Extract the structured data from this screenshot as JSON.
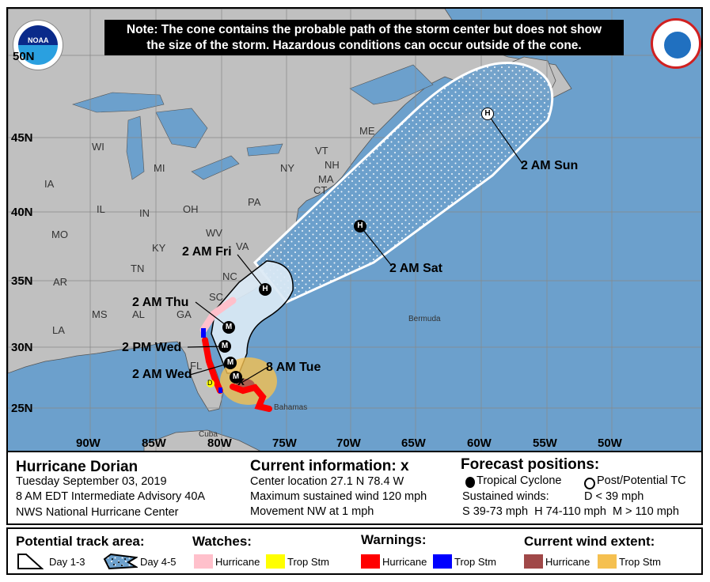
{
  "note": {
    "line1": "Note: The cone contains the probable path of the storm center but does not show",
    "line2": "the size of the storm. Hazardous conditions can occur outside of the cone."
  },
  "logos": {
    "left": "NOAA",
    "right": "NATIONAL WEATHER SERVICE"
  },
  "map": {
    "lat_labels": [
      "50N",
      "45N",
      "40N",
      "35N",
      "30N",
      "25N"
    ],
    "lon_labels": [
      "90W",
      "85W",
      "80W",
      "75W",
      "70W",
      "65W",
      "60W",
      "55W",
      "50W"
    ],
    "places": [
      "IA",
      "WI",
      "MI",
      "IL",
      "IN",
      "OH",
      "PA",
      "NY",
      "VT",
      "NH",
      "ME",
      "MA",
      "CT",
      "MO",
      "KY",
      "WV",
      "VA",
      "TN",
      "NC",
      "AR",
      "MS",
      "AL",
      "GA",
      "SC",
      "LA",
      "FL",
      "Bermuda",
      "Bahamas",
      "Cuba"
    ],
    "track_labels": [
      "2 AM Sun",
      "2 AM Sat",
      "2 AM Fri",
      "2 AM Thu",
      "2 PM Wed",
      "2 AM Wed",
      "8 AM Tue"
    ],
    "markers": [
      "H",
      "H",
      "H",
      "M",
      "M",
      "M",
      "M"
    ],
    "current_marker": "x",
    "watch_marker": "D"
  },
  "info": {
    "storm_name": "Hurricane Dorian",
    "date": "Tuesday September 03, 2019",
    "advisory": "8 AM EDT Intermediate Advisory 40A",
    "center": "NWS National Hurricane Center",
    "current_title": "Current information: x",
    "location": "Center location 27.1 N 78.4 W",
    "max_wind": "Maximum sustained wind 120 mph",
    "movement": "Movement NW at 1 mph",
    "forecast_title": "Forecast positions:",
    "tropical_cyclone": "Tropical Cyclone",
    "post_potential": "Post/Potential TC",
    "sustained_winds": "Sustained winds:",
    "d_wind": "D < 39 mph",
    "s_h_m_winds": "S 39-73 mph  H 74-110 mph  M > 110 mph"
  },
  "legend": {
    "track_title": "Potential track area:",
    "day13": "Day 1-3",
    "day45": "Day 4-5",
    "watches_title": "Watches:",
    "warnings_title": "Warnings:",
    "wind_title": "Current wind extent:",
    "hurricane": "Hurricane",
    "trop_stm": "Trop Stm"
  },
  "colors": {
    "ocean": "#6ca0cc",
    "land": "#c0c0c0",
    "hurricane_watch": "#ffc0cb",
    "ts_watch": "#ffff00",
    "hurricane_warning": "#ff0000",
    "ts_warning": "#0000ff",
    "hurricane_wind": "#a04848",
    "ts_wind": "#f5c050"
  }
}
